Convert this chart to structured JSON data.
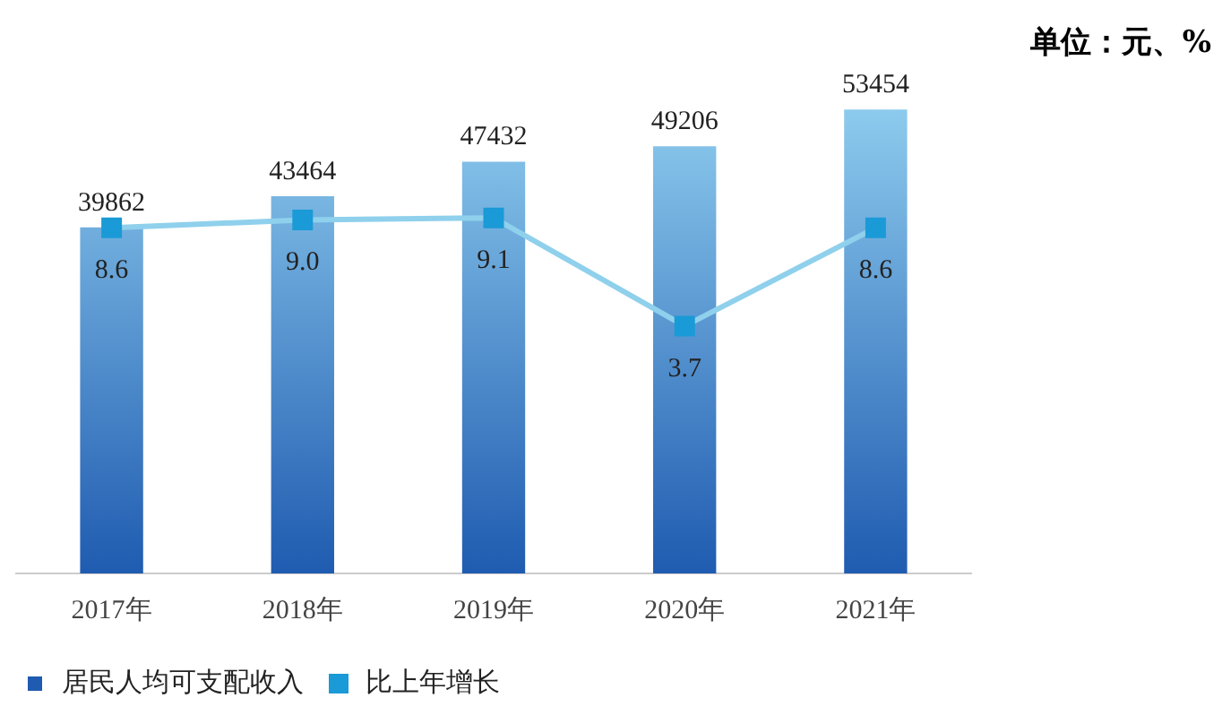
{
  "chart_data": {
    "type": "bar",
    "categories": [
      "2017年",
      "2018年",
      "2019年",
      "2020年",
      "2021年"
    ],
    "series": [
      {
        "name": "居民人均可支配收入",
        "color": "#1f5bb0",
        "values": [
          39862,
          43464,
          47432,
          49206,
          53454
        ]
      },
      {
        "name": "比上年增长",
        "type": "line",
        "axis": "y2",
        "color": "#8fd0ec",
        "values": [
          8.6,
          9.0,
          9.1,
          3.7,
          8.6
        ],
        "value_labels": [
          "8.6",
          "9.0",
          "9.1",
          "3.7",
          "8.6"
        ]
      }
    ],
    "tick_labels": "x",
    "data_labels": true,
    "grid": false,
    "legend": "bottom",
    "marker": "square",
    "annotations": [
      "单位：元、%"
    ]
  }
}
